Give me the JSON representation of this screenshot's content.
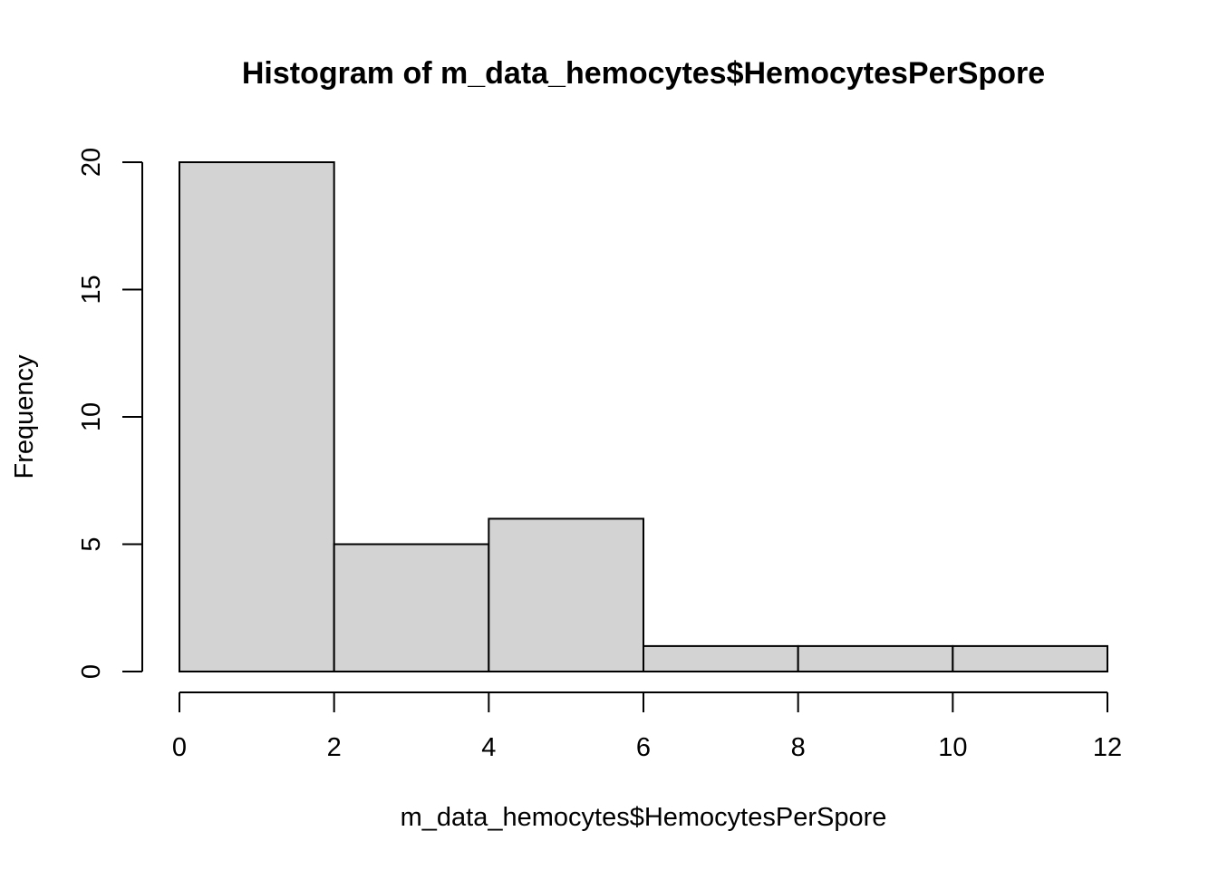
{
  "chart_data": {
    "type": "bar",
    "title": "Histogram of m_data_hemocytes$HemocytesPerSpore",
    "xlabel": "m_data_hemocytes$HemocytesPerSpore",
    "ylabel": "Frequency",
    "bins": [
      {
        "start": 0,
        "end": 2,
        "count": 20
      },
      {
        "start": 2,
        "end": 4,
        "count": 5
      },
      {
        "start": 4,
        "end": 6,
        "count": 6
      },
      {
        "start": 6,
        "end": 8,
        "count": 1
      },
      {
        "start": 8,
        "end": 10,
        "count": 1
      },
      {
        "start": 10,
        "end": 12,
        "count": 1
      }
    ],
    "xlim": [
      0,
      12
    ],
    "ylim": [
      0,
      20
    ],
    "x_ticks": [
      "0",
      "2",
      "4",
      "6",
      "8",
      "10",
      "12"
    ],
    "y_ticks": [
      "0",
      "5",
      "10",
      "15",
      "20"
    ],
    "grid": false,
    "bar_color": "#d3d3d3",
    "border_color": "#000000"
  }
}
